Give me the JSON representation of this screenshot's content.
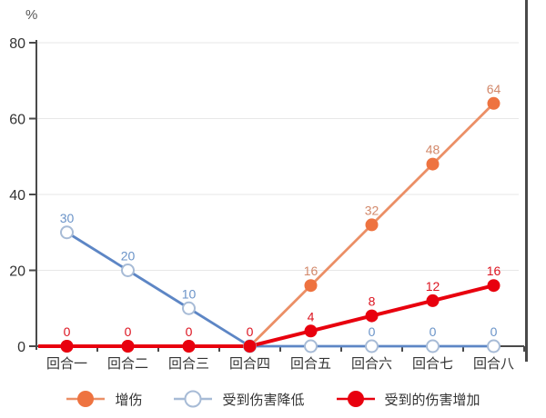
{
  "chart_data": {
    "type": "line",
    "title": "",
    "unit_label": "%",
    "categories": [
      "回合一",
      "回合二",
      "回合三",
      "回合四",
      "回合五",
      "回合六",
      "回合七",
      "回合八"
    ],
    "xlabel": "",
    "ylabel": "%",
    "ylim": [
      0,
      80
    ],
    "yticks": [
      0,
      20,
      40,
      60,
      80
    ],
    "grid": true,
    "legend_position": "bottom",
    "axis_color": "#4a4a4a",
    "grid_color": "#e7e7e7",
    "tick_label_color": "#333333",
    "category_label_color": "#333333",
    "series": [
      {
        "id": "damage-boost",
        "name": "增伤",
        "marker": "filled",
        "marker_color": "#ee7340",
        "line_color": "#eb8f66",
        "label_color": "#d2886a",
        "extend_left": false,
        "values": [
          0,
          0,
          0,
          0,
          16,
          32,
          48,
          64
        ],
        "point_labels": [
          null,
          null,
          null,
          null,
          "16",
          "32",
          "48",
          "64"
        ]
      },
      {
        "id": "damage-taken-reduction",
        "name": "受到伤害降低",
        "marker": "hollow",
        "marker_color": "#ffffff",
        "marker_stroke": "#a7bbd6",
        "line_color": "#5d86c5",
        "label_color": "#6a93c8",
        "extend_left": false,
        "values": [
          30,
          20,
          10,
          0,
          0,
          0,
          0,
          0
        ],
        "point_labels": [
          "30",
          "20",
          "10",
          null,
          null,
          "0",
          "0",
          "0"
        ]
      },
      {
        "id": "damage-taken-increase",
        "name": "受到的伤害增加",
        "marker": "filled",
        "marker_color": "#e8000e",
        "line_color": "#e8000e",
        "label_color": "#dc1420",
        "extend_left": true,
        "values": [
          0,
          0,
          0,
          0,
          4,
          8,
          12,
          16
        ],
        "point_labels": [
          "0",
          "0",
          "0",
          "0",
          "4",
          "8",
          "12",
          "16"
        ]
      }
    ]
  }
}
